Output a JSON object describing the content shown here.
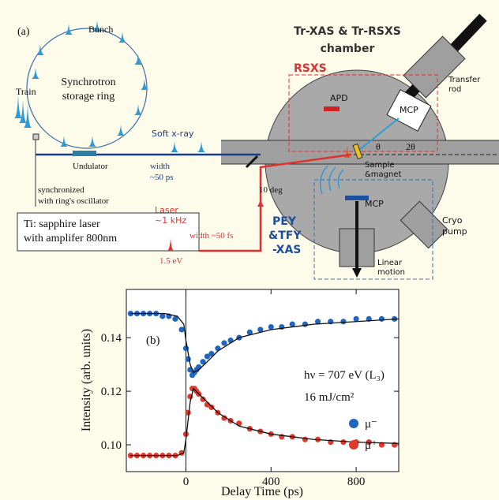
{
  "panel_a": {
    "label": "(a)",
    "bunch": "Bunch",
    "ring": [
      "Synchrotron",
      "storage ring"
    ],
    "train": "Train",
    "soft_xray": "Soft x-ray",
    "undulator": "Undulator",
    "xray_width": [
      "width",
      "~50 ps"
    ],
    "sync": [
      "synchronized",
      "with ring's oscillator"
    ],
    "laser_box": [
      "Ti: sapphire laser",
      "with amplifer 800nm"
    ],
    "laser": [
      "Laser",
      "~1 kHz"
    ],
    "laser_width": "width ~50 fs",
    "photon_energy": "1.5 eV",
    "angle": "10 deg",
    "chamber": [
      "Tr-XAS & Tr-RSXS",
      "chamber"
    ],
    "rsxs": "RSXS",
    "transfer_rod": [
      "Transfer",
      "rod"
    ],
    "apd": "APD",
    "mcp_top": "MCP",
    "theta": "θ",
    "two_theta": "2θ",
    "sample": [
      "Sample",
      "&magnet"
    ],
    "mcp_bottom": "MCP",
    "cryo": [
      "Cryo",
      "pump"
    ],
    "pey": [
      "PEY",
      "&TFY",
      "-XAS"
    ],
    "linear": [
      "Linear",
      "motion"
    ]
  },
  "chart_data": {
    "type": "scatter",
    "panel_label": "(b)",
    "x_label": "Delay Time (ps)",
    "y_label": "Intensity (arb. units)",
    "annotations": [
      "hν = 707 eV (L₃)",
      "16 mJ/cm²"
    ],
    "xlim": [
      -280,
      1000
    ],
    "xticks": [
      0,
      400,
      800
    ],
    "ylim": [
      0.09,
      0.158
    ],
    "yticks": [
      {
        "value": 0.1,
        "label": "0.10"
      },
      0.12,
      0.14
    ],
    "series": [
      {
        "name": "μ⁻",
        "color": "#1f66c2",
        "x": [
          -260,
          -230,
          -200,
          -170,
          -140,
          -110,
          -80,
          -50,
          -20,
          0,
          10,
          20,
          30,
          40,
          50,
          60,
          80,
          100,
          120,
          150,
          180,
          210,
          250,
          300,
          350,
          400,
          450,
          500,
          560,
          620,
          680,
          740,
          800,
          860,
          920,
          980
        ],
        "values": [
          0.149,
          0.149,
          0.149,
          0.149,
          0.149,
          0.148,
          0.148,
          0.147,
          0.143,
          0.136,
          0.132,
          0.128,
          0.126,
          0.127,
          0.128,
          0.129,
          0.131,
          0.133,
          0.134,
          0.136,
          0.138,
          0.139,
          0.14,
          0.142,
          0.143,
          0.144,
          0.144,
          0.145,
          0.145,
          0.146,
          0.146,
          0.146,
          0.147,
          0.147,
          0.147,
          0.147
        ],
        "fit": {
          "x": [
            -260,
            -100,
            -40,
            -10,
            0,
            20,
            35,
            60,
            100,
            150,
            250,
            400,
            600,
            800,
            1000
          ],
          "values": [
            0.149,
            0.149,
            0.148,
            0.145,
            0.139,
            0.13,
            0.127,
            0.128,
            0.131,
            0.135,
            0.14,
            0.143,
            0.145,
            0.146,
            0.147
          ]
        }
      },
      {
        "name": "μ⁺",
        "color": "#e0392b",
        "x": [
          -260,
          -230,
          -200,
          -170,
          -140,
          -110,
          -80,
          -50,
          -20,
          0,
          10,
          20,
          30,
          40,
          50,
          60,
          80,
          100,
          120,
          150,
          180,
          210,
          250,
          300,
          350,
          400,
          450,
          500,
          560,
          620,
          680,
          740,
          800,
          860,
          920,
          980
        ],
        "values": [
          0.096,
          0.096,
          0.096,
          0.096,
          0.096,
          0.096,
          0.096,
          0.096,
          0.097,
          0.104,
          0.112,
          0.118,
          0.121,
          0.121,
          0.12,
          0.119,
          0.117,
          0.115,
          0.114,
          0.112,
          0.11,
          0.109,
          0.108,
          0.106,
          0.105,
          0.104,
          0.103,
          0.103,
          0.102,
          0.102,
          0.101,
          0.101,
          0.101,
          0.101,
          0.1,
          0.1
        ],
        "fit": {
          "x": [
            -260,
            -100,
            -40,
            -10,
            0,
            20,
            35,
            60,
            100,
            150,
            250,
            400,
            600,
            800,
            1000
          ],
          "values": [
            0.096,
            0.096,
            0.096,
            0.097,
            0.102,
            0.116,
            0.121,
            0.119,
            0.116,
            0.112,
            0.107,
            0.104,
            0.102,
            0.101,
            0.1005
          ]
        }
      }
    ]
  }
}
